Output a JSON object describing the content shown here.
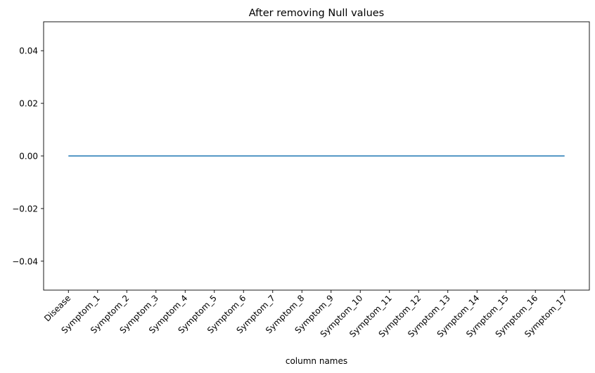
{
  "chart_data": {
    "type": "line",
    "title": "After removing Null values",
    "xlabel": "column names",
    "ylabel": "",
    "categories": [
      "Disease",
      "Symptom_1",
      "Symptom_2",
      "Symptom_3",
      "Symptom_4",
      "Symptom_5",
      "Symptom_6",
      "Symptom_7",
      "Symptom_8",
      "Symptom_9",
      "Symptom_10",
      "Symptom_11",
      "Symptom_12",
      "Symptom_13",
      "Symptom_14",
      "Symptom_15",
      "Symptom_16",
      "Symptom_17"
    ],
    "series": [
      {
        "values": [
          0,
          0,
          0,
          0,
          0,
          0,
          0,
          0,
          0,
          0,
          0,
          0,
          0,
          0,
          0,
          0,
          0,
          0
        ]
      }
    ],
    "ylim": [
      -0.051,
      0.051
    ],
    "yticks": [
      -0.04,
      -0.02,
      0.0,
      0.02,
      0.04
    ],
    "ytick_labels": [
      "−0.04",
      "−0.02",
      "0.00",
      "0.02",
      "0.04"
    ],
    "grid": false,
    "legend": "none",
    "colors": {
      "line": "#1f77b4",
      "axes": "#000000"
    }
  }
}
